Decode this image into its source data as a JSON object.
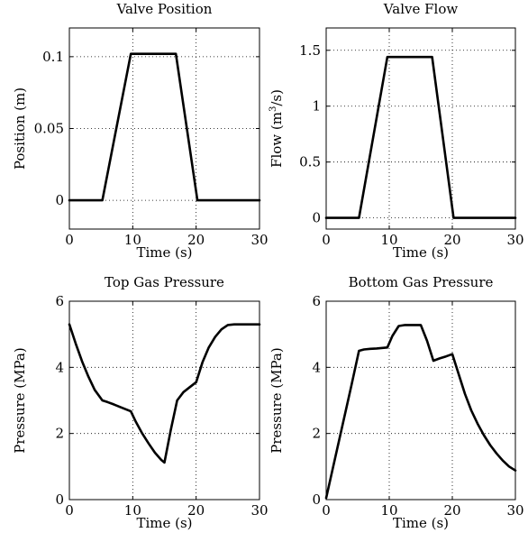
{
  "colors": {
    "line": "#000000",
    "grid": "#000000",
    "background": "#ffffff"
  },
  "chart_data": [
    {
      "type": "line",
      "title": "Valve Position",
      "xlabel": "Time (s)",
      "ylabel": "Position (m)",
      "xlim": [
        0,
        30
      ],
      "ylim": [
        -0.02,
        0.12
      ],
      "xticks": [
        0,
        10,
        20,
        30
      ],
      "xtick_labels": [
        "0",
        "10",
        "20",
        "30"
      ],
      "yticks": [
        0,
        0.05,
        0.1
      ],
      "ytick_labels": [
        "0",
        "0.05",
        "0.1"
      ],
      "grid": true,
      "series": [
        {
          "x": [
            0,
            5.2,
            9.7,
            16.8,
            20.2,
            30
          ],
          "y": [
            0,
            0,
            0.102,
            0.102,
            0,
            0
          ]
        }
      ]
    },
    {
      "type": "line",
      "title": "Valve Flow",
      "xlabel": "Time (s)",
      "ylabel": "Flow (m",
      "ylabel_sup": "3",
      "ylabel_suffix": "/s)",
      "xlim": [
        0,
        30
      ],
      "ylim": [
        -0.1,
        1.7
      ],
      "xticks": [
        0,
        10,
        20,
        30
      ],
      "xtick_labels": [
        "0",
        "10",
        "20",
        "30"
      ],
      "yticks": [
        0,
        0.5,
        1,
        1.5
      ],
      "ytick_labels": [
        "0",
        "0.5",
        "1",
        "1.5"
      ],
      "grid": true,
      "series": [
        {
          "x": [
            0,
            5.2,
            9.7,
            16.8,
            20.2,
            30
          ],
          "y": [
            0,
            0,
            1.44,
            1.44,
            0,
            0
          ]
        }
      ]
    },
    {
      "type": "line",
      "title": "Top Gas Pressure",
      "xlabel": "Time (s)",
      "ylabel": "Pressure (MPa)",
      "xlim": [
        0,
        30
      ],
      "ylim": [
        0,
        6
      ],
      "xticks": [
        0,
        10,
        20,
        30
      ],
      "xtick_labels": [
        "0",
        "10",
        "20",
        "30"
      ],
      "yticks": [
        0,
        2,
        4,
        6
      ],
      "ytick_labels": [
        "0",
        "2",
        "4",
        "6"
      ],
      "grid": true,
      "series": [
        {
          "x": [
            0,
            1,
            2,
            3,
            4,
            5.2,
            6,
            7,
            8,
            9.7,
            10.5,
            11.5,
            12.5,
            13.5,
            14.5,
            15,
            16,
            17,
            18,
            19,
            20,
            21,
            22,
            23,
            24,
            25,
            26,
            28,
            30
          ],
          "y": [
            5.3,
            4.72,
            4.18,
            3.72,
            3.32,
            3.0,
            2.95,
            2.88,
            2.8,
            2.67,
            2.35,
            2.0,
            1.7,
            1.42,
            1.2,
            1.12,
            2.1,
            3.0,
            3.25,
            3.4,
            3.55,
            4.15,
            4.6,
            4.92,
            5.15,
            5.28,
            5.3,
            5.3,
            5.3
          ]
        }
      ]
    },
    {
      "type": "line",
      "title": "Bottom Gas Pressure",
      "xlabel": "Time (s)",
      "ylabel": "Pressure (MPa)",
      "xlim": [
        0,
        30
      ],
      "ylim": [
        0,
        6
      ],
      "xticks": [
        0,
        10,
        20,
        30
      ],
      "xtick_labels": [
        "0",
        "10",
        "20",
        "30"
      ],
      "yticks": [
        0,
        2,
        4,
        6
      ],
      "ytick_labels": [
        "0",
        "2",
        "4",
        "6"
      ],
      "grid": true,
      "series": [
        {
          "x": [
            0,
            1,
            2,
            3,
            4,
            5.2,
            6,
            7,
            8,
            9.7,
            10.5,
            11.5,
            12.5,
            13.5,
            14.5,
            15,
            16,
            17,
            18,
            19,
            20,
            21,
            22,
            23,
            24,
            25,
            26,
            27,
            28,
            29,
            30
          ],
          "y": [
            0.05,
            0.9,
            1.75,
            2.6,
            3.45,
            4.5,
            4.54,
            4.56,
            4.57,
            4.6,
            4.95,
            5.25,
            5.28,
            5.28,
            5.28,
            5.28,
            4.8,
            4.2,
            4.27,
            4.33,
            4.4,
            3.8,
            3.2,
            2.7,
            2.3,
            1.95,
            1.65,
            1.4,
            1.18,
            1.0,
            0.88
          ]
        }
      ]
    }
  ]
}
